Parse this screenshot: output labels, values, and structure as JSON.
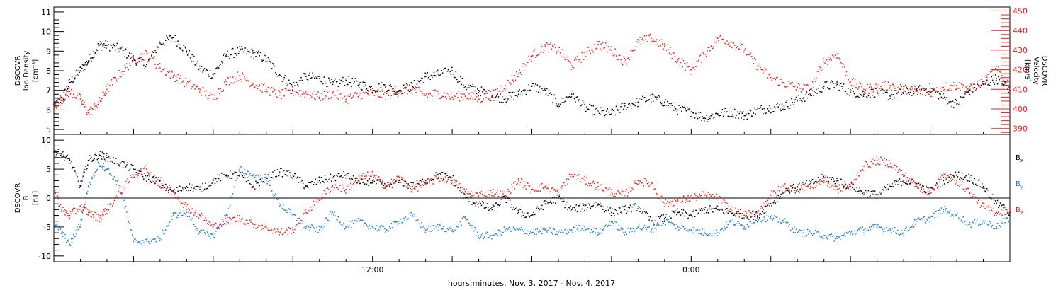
{
  "xaxis": {
    "title": "hours:minutes, Nov.  3, 2017 - Nov.  4, 2017",
    "tick_labels": [
      "12:00",
      "0:00"
    ],
    "range_hours": [
      0,
      36
    ]
  },
  "panels": {
    "top": {
      "left_label": [
        "DSCOVR",
        "Ion Density",
        "[cm⁻³]"
      ],
      "right_label": [
        "DSCOVR",
        "Velocity",
        "[km/s]"
      ],
      "left_ticks": [
        "11",
        "10",
        "9",
        "8",
        "7",
        "6",
        "5"
      ],
      "right_ticks": [
        "450",
        "440",
        "430",
        "420",
        "410",
        "400",
        "390"
      ]
    },
    "bottom": {
      "left_label": [
        "DSCOVR",
        "B",
        "[nT]"
      ],
      "left_ticks": [
        "10",
        "5",
        "0",
        "-5",
        "-10"
      ],
      "legend": [
        "Bx",
        "By",
        "Bz"
      ],
      "legend_display": [
        {
          "main": "B",
          "sub": "x"
        },
        {
          "main": "B",
          "sub": "y"
        },
        {
          "main": "B",
          "sub": "z"
        }
      ]
    }
  },
  "colors": {
    "density": "#000000",
    "velocity": "#e8231c",
    "Bx": "#000000",
    "By": "#1e7fd9",
    "Bz": "#e8231c"
  },
  "chart_data": [
    {
      "type": "scatter",
      "title": "",
      "xlabel": "hours:minutes, Nov.  3, 2017 - Nov.  4, 2017",
      "x_unit": "hours from 2017-11-03 00:00",
      "xlim": [
        0,
        36
      ],
      "y_left": {
        "label": "DSCOVR Ion Density [cm-3]",
        "lim": [
          4.75,
          11.25
        ]
      },
      "y_right": {
        "label": "DSCOVR Velocity [km/s]",
        "lim": [
          387,
          452
        ]
      },
      "grid": false,
      "series": [
        {
          "name": "Ion Density",
          "axis": "left",
          "x": [
            0.0,
            0.3,
            0.6,
            1.0,
            1.3,
            1.7,
            2.0,
            2.5,
            3.0,
            3.5,
            4.0,
            4.5,
            5.0,
            5.5,
            6.0,
            6.5,
            7.0,
            7.5,
            8.0,
            8.5,
            9.0,
            9.5,
            10.0,
            10.5,
            11.0,
            11.5,
            12.0,
            12.5,
            13.0,
            13.5,
            14.0,
            14.5,
            15.0,
            15.5,
            16.0,
            16.5,
            17.0,
            17.5,
            18.0,
            18.5,
            19.0,
            19.5,
            20.0,
            20.5,
            21.0,
            21.5,
            22.0,
            22.5,
            23.0,
            23.5,
            24.0,
            24.5,
            25.0,
            25.5,
            26.0,
            26.5,
            27.0,
            27.5,
            28.0,
            28.5,
            29.0,
            29.5,
            30.0,
            30.5,
            31.0,
            31.5,
            32.0,
            32.5,
            33.0,
            33.5,
            34.0,
            34.5,
            35.0,
            35.5,
            36.0
          ],
          "y": [
            6.3,
            6.5,
            7.4,
            8.0,
            8.5,
            9.3,
            9.3,
            9.1,
            8.6,
            8.3,
            9.4,
            9.7,
            9.0,
            8.1,
            7.8,
            8.8,
            9.0,
            8.9,
            8.6,
            7.8,
            7.2,
            7.7,
            7.6,
            7.3,
            7.5,
            7.3,
            7.1,
            7.2,
            7.0,
            7.2,
            7.7,
            7.8,
            8.0,
            7.2,
            7.0,
            6.7,
            6.6,
            6.8,
            7.2,
            7.0,
            6.3,
            6.8,
            6.1,
            5.9,
            5.8,
            6.2,
            6.4,
            6.6,
            6.4,
            6.0,
            5.9,
            5.6,
            5.8,
            5.9,
            5.7,
            6.0,
            6.1,
            6.2,
            6.5,
            6.8,
            7.2,
            7.3,
            6.9,
            6.8,
            6.9,
            6.7,
            6.9,
            7.0,
            7.1,
            6.6,
            6.3,
            7.0,
            7.3,
            7.6,
            7.0
          ]
        },
        {
          "name": "Velocity",
          "axis": "right",
          "x": [
            0.0,
            0.3,
            0.6,
            1.0,
            1.3,
            1.7,
            2.0,
            2.5,
            3.0,
            3.5,
            4.0,
            4.5,
            5.0,
            5.5,
            6.0,
            6.5,
            7.0,
            7.5,
            8.0,
            8.5,
            9.0,
            9.5,
            10.0,
            10.5,
            11.0,
            11.5,
            12.0,
            12.5,
            13.0,
            13.5,
            14.0,
            14.5,
            15.0,
            15.5,
            16.0,
            16.5,
            17.0,
            17.5,
            18.0,
            18.5,
            19.0,
            19.5,
            20.0,
            20.5,
            21.0,
            21.5,
            22.0,
            22.5,
            23.0,
            23.5,
            24.0,
            24.5,
            25.0,
            25.5,
            26.0,
            26.5,
            27.0,
            27.5,
            28.0,
            28.5,
            29.0,
            29.5,
            30.0,
            30.5,
            31.0,
            31.5,
            32.0,
            32.5,
            33.0,
            33.5,
            34.0,
            34.5,
            35.0,
            35.5,
            36.0
          ],
          "y": [
            401,
            405,
            409,
            405,
            398,
            403,
            410,
            418,
            425,
            428,
            421,
            417,
            413,
            410,
            405,
            414,
            417,
            413,
            410,
            407,
            409,
            408,
            406,
            408,
            405,
            407,
            408,
            407,
            409,
            410,
            407,
            408,
            406,
            407,
            405,
            407,
            412,
            418,
            427,
            432,
            430,
            422,
            428,
            433,
            430,
            424,
            434,
            436,
            432,
            425,
            420,
            428,
            436,
            434,
            430,
            422,
            416,
            413,
            411,
            410,
            424,
            428,
            414,
            410,
            411,
            412,
            410,
            409,
            408,
            411,
            412,
            410,
            414,
            420,
            412
          ]
        }
      ]
    },
    {
      "type": "scatter",
      "title": "",
      "xlabel": "hours:minutes, Nov.  3, 2017 - Nov.  4, 2017",
      "x_unit": "hours from 2017-11-03 00:00",
      "xlim": [
        0,
        36
      ],
      "ylabel": "DSCOVR B [nT]",
      "ylim": [
        -11,
        11
      ],
      "grid": false,
      "zero_line": true,
      "series": [
        {
          "name": "Bx",
          "x": [
            0.0,
            0.3,
            0.6,
            1.0,
            1.3,
            1.7,
            2.0,
            2.5,
            3.0,
            3.5,
            4.0,
            4.5,
            5.0,
            5.5,
            6.0,
            6.5,
            7.0,
            7.5,
            8.0,
            8.5,
            9.0,
            9.5,
            10.0,
            10.5,
            11.0,
            11.5,
            12.0,
            12.5,
            13.0,
            13.5,
            14.0,
            14.5,
            15.0,
            15.5,
            16.0,
            16.5,
            17.0,
            17.5,
            18.0,
            18.5,
            19.0,
            19.5,
            20.0,
            20.5,
            21.0,
            21.5,
            22.0,
            22.5,
            23.0,
            23.5,
            24.0,
            24.5,
            25.0,
            25.5,
            26.0,
            26.5,
            27.0,
            27.5,
            28.0,
            28.5,
            29.0,
            29.5,
            30.0,
            30.5,
            31.0,
            31.5,
            32.0,
            32.5,
            33.0,
            33.5,
            34.0,
            34.5,
            35.0,
            35.5,
            36.0
          ],
          "y": [
            8.0,
            7.5,
            6.5,
            2.0,
            6.5,
            7.5,
            7.0,
            6.0,
            5.0,
            3.5,
            3.0,
            1.0,
            2.0,
            1.5,
            3.0,
            4.0,
            4.0,
            2.0,
            3.5,
            4.5,
            4.0,
            2.0,
            3.0,
            3.5,
            4.0,
            2.5,
            3.0,
            2.0,
            3.0,
            2.0,
            3.0,
            4.0,
            3.5,
            0.0,
            -1.0,
            -2.0,
            0.0,
            -2.5,
            -3.0,
            -1.0,
            0.0,
            -2.0,
            -1.5,
            -1.0,
            -2.5,
            -2.0,
            -1.5,
            -4.0,
            -3.5,
            -2.5,
            -3.0,
            -2.0,
            -2.0,
            -2.5,
            -3.0,
            -3.0,
            -1.0,
            1.0,
            2.0,
            2.5,
            3.5,
            3.0,
            2.0,
            1.0,
            0.5,
            2.0,
            3.0,
            2.5,
            1.0,
            3.0,
            4.0,
            3.5,
            2.0,
            -1.0,
            -2.5
          ]
        },
        {
          "name": "By",
          "x": [
            0.0,
            0.3,
            0.6,
            1.0,
            1.3,
            1.7,
            2.0,
            2.5,
            3.0,
            3.5,
            4.0,
            4.5,
            5.0,
            5.5,
            6.0,
            6.5,
            7.0,
            7.5,
            8.0,
            8.5,
            9.0,
            9.5,
            10.0,
            10.5,
            11.0,
            11.5,
            12.0,
            12.5,
            13.0,
            13.5,
            14.0,
            14.5,
            15.0,
            15.5,
            16.0,
            16.5,
            17.0,
            17.5,
            18.0,
            18.5,
            19.0,
            19.5,
            20.0,
            20.5,
            21.0,
            21.5,
            22.0,
            22.5,
            23.0,
            23.5,
            24.0,
            24.5,
            25.0,
            25.5,
            26.0,
            26.5,
            27.0,
            27.5,
            28.0,
            28.5,
            29.0,
            29.5,
            30.0,
            30.5,
            31.0,
            31.5,
            32.0,
            32.5,
            33.0,
            33.5,
            34.0,
            34.5,
            35.0,
            35.5,
            36.0
          ],
          "y": [
            -4.0,
            -6.0,
            -8.0,
            -4.5,
            2.0,
            6.0,
            5.0,
            2.0,
            -7.5,
            -7.5,
            -7.0,
            -3.0,
            -2.5,
            -6.0,
            -6.5,
            -3.0,
            5.0,
            4.0,
            3.0,
            -1.0,
            -3.0,
            -5.0,
            -5.5,
            -2.5,
            -5.0,
            -4.0,
            -5.0,
            -5.5,
            -4.0,
            -3.0,
            -5.5,
            -5.0,
            -5.5,
            -3.5,
            -6.5,
            -6.5,
            -5.5,
            -5.5,
            -6.0,
            -5.5,
            -6.0,
            -5.5,
            -5.0,
            -6.0,
            -4.0,
            -6.0,
            -5.0,
            -5.5,
            -4.0,
            -5.0,
            -5.5,
            -6.0,
            -6.0,
            -4.0,
            -5.0,
            -3.5,
            -3.5,
            -4.0,
            -6.0,
            -6.0,
            -6.5,
            -7.0,
            -6.0,
            -5.5,
            -5.0,
            -5.5,
            -6.0,
            -4.0,
            -3.5,
            -2.0,
            -3.0,
            -4.5,
            -4.0,
            -5.0,
            -3.5
          ]
        },
        {
          "name": "Bz",
          "x": [
            0.0,
            0.3,
            0.6,
            1.0,
            1.3,
            1.7,
            2.0,
            2.5,
            3.0,
            3.5,
            4.0,
            4.5,
            5.0,
            5.5,
            6.0,
            6.5,
            7.0,
            7.5,
            8.0,
            8.5,
            9.0,
            9.5,
            10.0,
            10.5,
            11.0,
            11.5,
            12.0,
            12.5,
            13.0,
            13.5,
            14.0,
            14.5,
            15.0,
            15.5,
            16.0,
            16.5,
            17.0,
            17.5,
            18.0,
            18.5,
            19.0,
            19.5,
            20.0,
            20.5,
            21.0,
            21.5,
            22.0,
            22.5,
            23.0,
            23.5,
            24.0,
            24.5,
            25.0,
            25.5,
            26.0,
            26.5,
            27.0,
            27.5,
            28.0,
            28.5,
            29.0,
            29.5,
            30.0,
            30.5,
            31.0,
            31.5,
            32.0,
            32.5,
            33.0,
            33.5,
            34.0,
            34.5,
            35.0,
            35.5,
            36.0
          ],
          "y": [
            1.5,
            -2.0,
            -3.0,
            -1.5,
            -2.5,
            -3.5,
            -2.0,
            1.0,
            4.0,
            5.0,
            2.0,
            1.0,
            -1.5,
            -3.0,
            -5.0,
            -4.0,
            -3.5,
            -4.5,
            -5.0,
            -6.0,
            -5.5,
            -2.5,
            0.0,
            2.0,
            1.5,
            3.5,
            4.0,
            2.0,
            3.5,
            1.5,
            2.5,
            3.5,
            3.0,
            1.0,
            0.5,
            1.0,
            0.5,
            3.0,
            1.5,
            2.0,
            1.0,
            4.0,
            3.0,
            2.0,
            1.0,
            0.5,
            3.0,
            2.5,
            -1.0,
            -0.5,
            0.0,
            0.5,
            0.0,
            -2.0,
            -3.0,
            -2.5,
            0.5,
            2.0,
            1.5,
            2.0,
            3.0,
            1.5,
            2.0,
            5.5,
            6.5,
            6.0,
            4.0,
            2.0,
            1.0,
            4.0,
            3.0,
            1.0,
            -1.5,
            -2.5,
            -2.0
          ]
        }
      ]
    }
  ]
}
